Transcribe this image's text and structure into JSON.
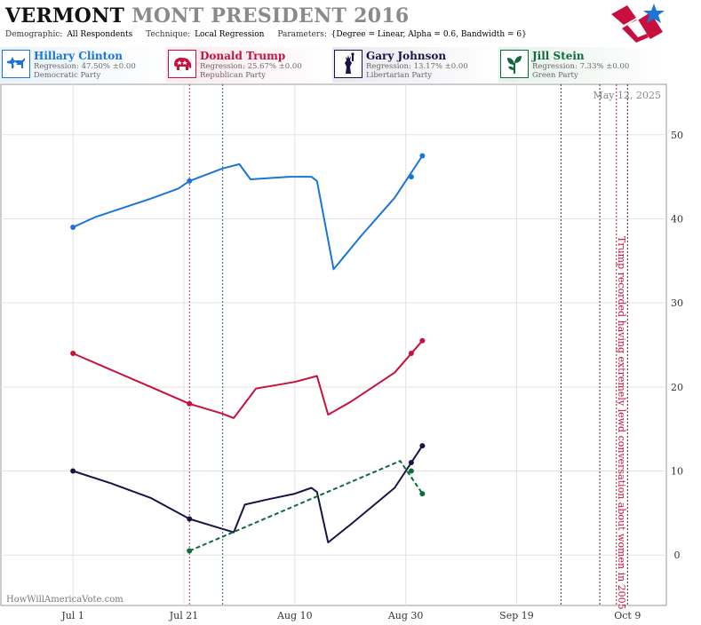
{
  "title": {
    "main": "VERMONT",
    "rest": "MONT PRESIDENT 2016"
  },
  "subtitle": {
    "demographic_label": "Demographic:",
    "demographic": "All Respondents",
    "technique_label": "Technique:",
    "technique": "Local Regression",
    "parameters_label": "Parameters:",
    "parameters": "{Degree = Linear, Alpha = 0.6, Bandwidth = 6}"
  },
  "candidates": [
    {
      "name": "Hillary Clinton",
      "regression": "Regression: 47.50% ±0.00",
      "party": "Democratic Party",
      "color": "#1a75d9",
      "icon": "donkey-icon"
    },
    {
      "name": "Donald Trump",
      "regression": "Regression: 25.67% ±0.00",
      "party": "Republican Party",
      "color": "#c8103e",
      "icon": "elephant-icon"
    },
    {
      "name": "Gary Johnson",
      "regression": "Regression: 13.17% ±0.00",
      "party": "Libertarian Party",
      "color": "#1a1446",
      "icon": "liberty-statue-icon"
    },
    {
      "name": "Jill Stein",
      "regression": "Regression: 7.33% ±0.00",
      "party": "Green Party",
      "color": "#0e6b3b",
      "icon": "leaf-icon"
    }
  ],
  "chart_data": {
    "type": "line",
    "date_label": "May 12, 2025",
    "watermark": "HowWillAmericaVote.com",
    "annotation": "Trump recorded having extremely lewd conversation about women in 2005",
    "x_ticks": [
      "Jul 1",
      "Jul 21",
      "Aug 10",
      "Aug 30",
      "Sep 19",
      "Oct 9"
    ],
    "y_ticks": [
      0,
      10,
      20,
      30,
      40,
      50
    ],
    "xlim": [
      "2016-06-18",
      "2016-10-16"
    ],
    "ylim": [
      -6,
      56
    ],
    "grid": true,
    "series": [
      {
        "name": "Hillary Clinton",
        "color": "#1a75d9",
        "dashed": false,
        "line": [
          [
            "2016-07-01",
            39
          ],
          [
            "2016-07-05",
            40.2
          ],
          [
            "2016-07-10",
            41.3
          ],
          [
            "2016-07-15",
            42.4
          ],
          [
            "2016-07-20",
            43.6
          ],
          [
            "2016-07-22",
            44.5
          ],
          [
            "2016-07-28",
            46
          ],
          [
            "2016-07-31",
            46.5
          ],
          [
            "2016-08-02",
            44.7
          ],
          [
            "2016-08-09",
            45
          ],
          [
            "2016-08-13",
            45
          ],
          [
            "2016-08-14",
            44.5
          ],
          [
            "2016-08-17",
            34
          ],
          [
            "2016-08-22",
            38
          ],
          [
            "2016-08-28",
            42.5
          ],
          [
            "2016-09-02",
            47.5
          ]
        ],
        "points": [
          [
            "2016-07-01",
            39
          ],
          [
            "2016-07-22",
            44.5
          ],
          [
            "2016-08-31",
            45
          ],
          [
            "2016-09-02",
            47.5
          ]
        ]
      },
      {
        "name": "Donald Trump",
        "color": "#c8103e",
        "dashed": false,
        "line": [
          [
            "2016-07-01",
            24
          ],
          [
            "2016-07-08",
            22
          ],
          [
            "2016-07-15",
            20
          ],
          [
            "2016-07-22",
            18
          ],
          [
            "2016-07-28",
            16.8
          ],
          [
            "2016-07-30",
            16.3
          ],
          [
            "2016-08-03",
            19.8
          ],
          [
            "2016-08-10",
            20.6
          ],
          [
            "2016-08-14",
            21.3
          ],
          [
            "2016-08-16",
            16.7
          ],
          [
            "2016-08-20",
            18.2
          ],
          [
            "2016-08-28",
            21.7
          ],
          [
            "2016-09-02",
            25.5
          ]
        ],
        "points": [
          [
            "2016-07-01",
            24
          ],
          [
            "2016-07-22",
            18
          ],
          [
            "2016-08-31",
            24
          ],
          [
            "2016-09-02",
            25.5
          ]
        ]
      },
      {
        "name": "Gary Johnson",
        "color": "#1a1446",
        "dashed": false,
        "line": [
          [
            "2016-07-01",
            10
          ],
          [
            "2016-07-08",
            8.5
          ],
          [
            "2016-07-15",
            6.8
          ],
          [
            "2016-07-22",
            4.3
          ],
          [
            "2016-07-27",
            3.3
          ],
          [
            "2016-07-30",
            2.7
          ],
          [
            "2016-08-01",
            6
          ],
          [
            "2016-08-05",
            6.6
          ],
          [
            "2016-08-10",
            7.3
          ],
          [
            "2016-08-13",
            8
          ],
          [
            "2016-08-14",
            7.5
          ],
          [
            "2016-08-16",
            1.5
          ],
          [
            "2016-08-20",
            3.6
          ],
          [
            "2016-08-28",
            8
          ],
          [
            "2016-09-02",
            13
          ]
        ],
        "points": [
          [
            "2016-07-01",
            10
          ],
          [
            "2016-07-22",
            4.3
          ],
          [
            "2016-08-31",
            11
          ],
          [
            "2016-09-02",
            13
          ]
        ]
      },
      {
        "name": "Jill Stein",
        "color": "#0e6b3b",
        "dashed": true,
        "line": [
          [
            "2016-07-22",
            0.5
          ],
          [
            "2016-08-29",
            11.2
          ],
          [
            "2016-09-02",
            7.3
          ]
        ],
        "points": [
          [
            "2016-07-22",
            0.5
          ],
          [
            "2016-08-31",
            10
          ],
          [
            "2016-09-02",
            7.3
          ]
        ]
      }
    ],
    "event_lines": [
      {
        "date": "2016-07-22",
        "color": "#b0306a"
      },
      {
        "date": "2016-07-28",
        "color": "#2a6080"
      },
      {
        "date": "2016-09-27",
        "color": "#552244"
      },
      {
        "date": "2016-10-04",
        "color": "#552244"
      },
      {
        "date": "2016-10-07",
        "color": "#c8103e"
      },
      {
        "date": "2016-10-09",
        "color": "#552244"
      }
    ]
  }
}
